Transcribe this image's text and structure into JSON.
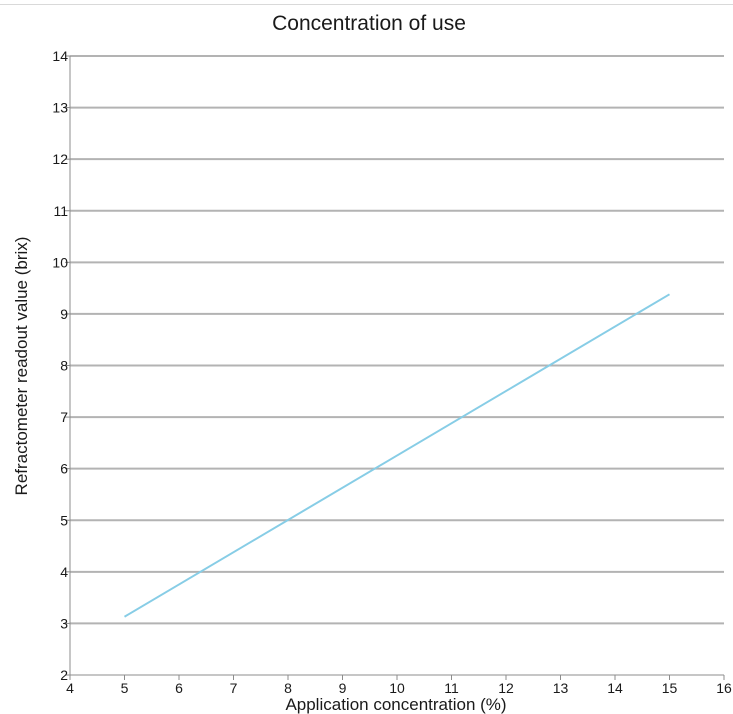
{
  "chart_data": {
    "type": "line",
    "title": "Concentration of use",
    "xlabel": "Application concentration (%)",
    "ylabel": "Refractometer readout value (brix)",
    "xlim": [
      4,
      16
    ],
    "ylim": [
      2,
      14
    ],
    "xticks": [
      4,
      5,
      6,
      7,
      8,
      9,
      10,
      11,
      12,
      13,
      14,
      15,
      16
    ],
    "yticks": [
      2,
      3,
      4,
      5,
      6,
      7,
      8,
      9,
      10,
      11,
      12,
      13,
      14
    ],
    "grid": "horizontal",
    "legend": "none",
    "series": [
      {
        "x": [
          5,
          15
        ],
        "y": [
          3.13,
          9.38
        ],
        "color": "#87cde6"
      }
    ]
  }
}
